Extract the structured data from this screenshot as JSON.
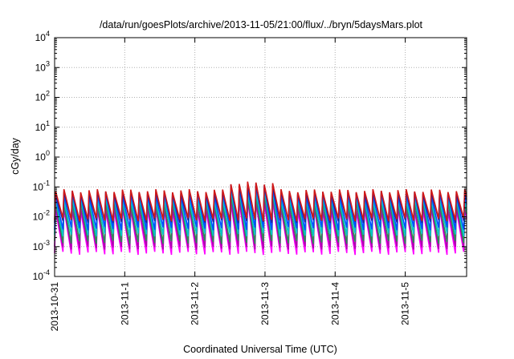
{
  "chart_data": {
    "type": "line",
    "title": "/data/run/goesPlots/archive/2013-11-05/21:00/flux/../bryn/5daysMars.plot",
    "xlabel": "Coordinated Universal Time (UTC)",
    "ylabel": "cGy/day",
    "x_range": [
      "2013-10-31",
      "2013-11-05 21:00"
    ],
    "ylim": [
      0.0001,
      10000
    ],
    "yscale": "log",
    "grid": true,
    "x_ticks": [
      "2013-10-31",
      "2013-11-1",
      "2013-11-2",
      "2013-11-3",
      "2013-11-4",
      "2013-11-5"
    ],
    "y_ticks": [
      {
        "base": "10",
        "exp": "-4"
      },
      {
        "base": "10",
        "exp": "-3"
      },
      {
        "base": "10",
        "exp": "-2"
      },
      {
        "base": "10",
        "exp": "-1"
      },
      {
        "base": "10",
        "exp": "0"
      },
      {
        "base": "10",
        "exp": "1"
      },
      {
        "base": "10",
        "exp": "2"
      },
      {
        "base": "10",
        "exp": "3"
      },
      {
        "base": "10",
        "exp": "4"
      }
    ],
    "pattern": {
      "cycles_per_day": 8.4,
      "enhanced_interval": [
        "2013-11-02 11:00",
        "2013-11-03 04:00"
      ],
      "enhanced_factor": 1.8
    },
    "series": [
      {
        "color": "#ff00ff",
        "peak": 0.018,
        "trough": 0.0006
      },
      {
        "color": "#b000b0",
        "peak": 0.02,
        "trough": 0.0009
      },
      {
        "color": "#2e8b57",
        "peak": 0.03,
        "trough": 0.0014
      },
      {
        "color": "#00c8c8",
        "peak": 0.04,
        "trough": 0.0025
      },
      {
        "color": "#0050ff",
        "peak": 0.055,
        "trough": 0.004
      },
      {
        "color": "#2020a0",
        "peak": 0.065,
        "trough": 0.007
      },
      {
        "color": "#d01818",
        "peak": 0.075,
        "trough": 0.008
      }
    ]
  }
}
